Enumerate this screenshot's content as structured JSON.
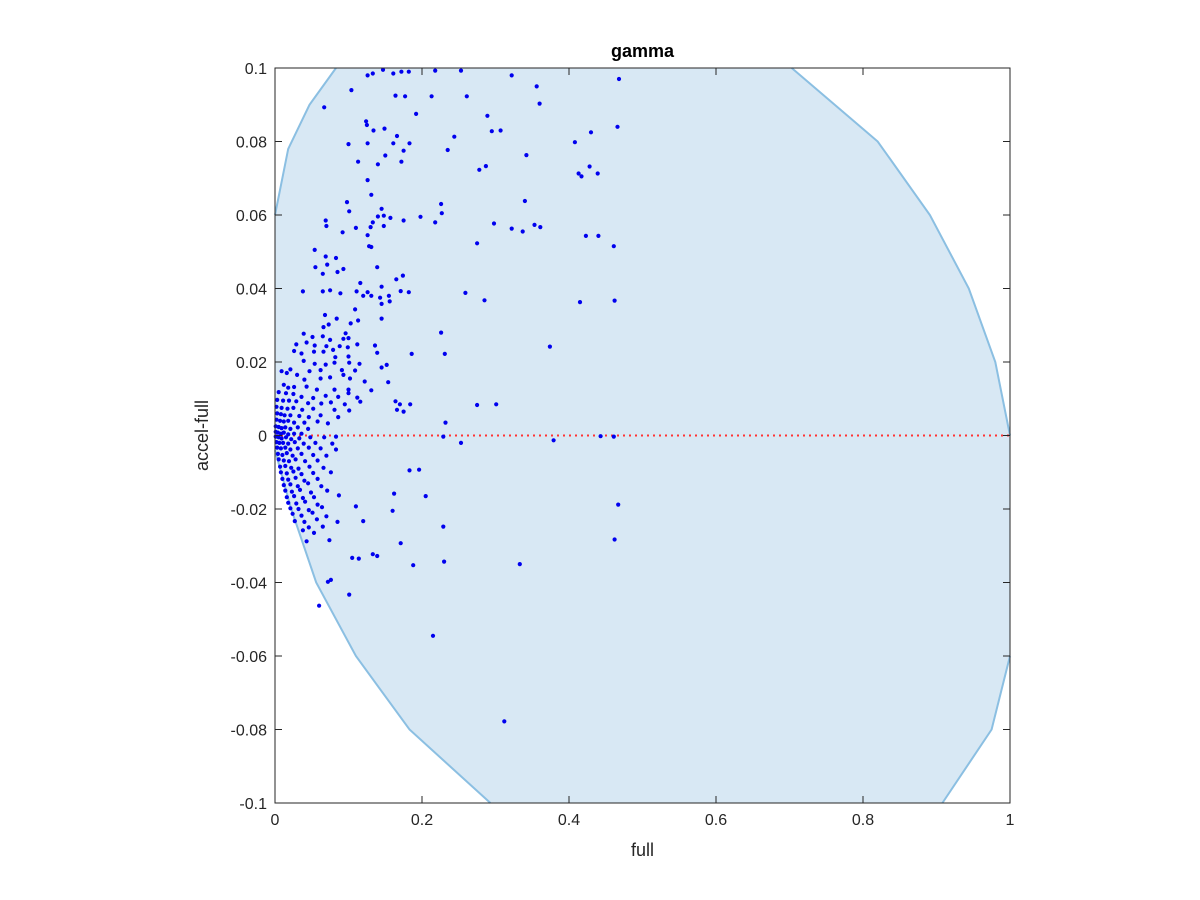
{
  "chart_data": {
    "type": "scatter",
    "title": "gamma",
    "xlabel": "full",
    "ylabel": "accel-full",
    "xlim": [
      0,
      1
    ],
    "ylim": [
      -0.1,
      0.1
    ],
    "xticks": [
      0,
      0.2,
      0.4,
      0.6,
      0.8,
      1
    ],
    "xtick_labels": [
      "0",
      "0.2",
      "0.4",
      "0.6",
      "0.8",
      "1"
    ],
    "yticks": [
      -0.1,
      -0.08,
      -0.06,
      -0.04,
      -0.02,
      0,
      0.02,
      0.04,
      0.06,
      0.08,
      0.1
    ],
    "ytick_labels": [
      "-0.1",
      "-0.08",
      "-0.06",
      "-0.04",
      "-0.02",
      "0",
      "0.02",
      "0.04",
      "0.06",
      "0.08",
      "0.1"
    ],
    "grid": false,
    "colors": {
      "points": "#0000ee",
      "region_fill": "#d8e8f4",
      "region_edge": "#8bbfe2",
      "zero_line": "#ff3333",
      "axes": "#262626"
    },
    "region_boundary": {
      "left": [
        [
          0.0,
          0.06
        ],
        [
          0.018,
          0.078
        ],
        [
          0.047,
          0.09
        ],
        [
          0.083,
          0.1
        ],
        [
          0.0,
          -0.004
        ],
        [
          0.022,
          -0.02
        ],
        [
          0.056,
          -0.04
        ],
        [
          0.11,
          -0.06
        ],
        [
          0.183,
          -0.08
        ],
        [
          0.293,
          -0.1
        ]
      ],
      "right": [
        [
          0.703,
          0.1
        ],
        [
          0.82,
          0.08
        ],
        [
          0.891,
          0.06
        ],
        [
          0.944,
          0.04
        ],
        [
          0.98,
          0.02
        ],
        [
          1.0,
          0.0
        ],
        [
          1.0,
          -0.06
        ],
        [
          0.975,
          -0.08
        ],
        [
          0.908,
          -0.1
        ]
      ]
    },
    "zero_line": {
      "y": 0,
      "style": "dotted"
    },
    "points": [
      [
        0.147,
        0.0995
      ],
      [
        0.161,
        0.0985
      ],
      [
        0.172,
        0.099
      ],
      [
        0.182,
        0.099
      ],
      [
        0.218,
        0.0993
      ],
      [
        0.253,
        0.0993
      ],
      [
        0.322,
        0.098
      ],
      [
        0.468,
        0.097
      ],
      [
        0.126,
        0.098
      ],
      [
        0.133,
        0.0985
      ],
      [
        0.104,
        0.094
      ],
      [
        0.067,
        0.0893
      ],
      [
        0.164,
        0.0925
      ],
      [
        0.177,
        0.0923
      ],
      [
        0.213,
        0.0923
      ],
      [
        0.261,
        0.0923
      ],
      [
        0.356,
        0.095
      ],
      [
        0.36,
        0.0903
      ],
      [
        0.124,
        0.0855
      ],
      [
        0.125,
        0.0845
      ],
      [
        0.134,
        0.083
      ],
      [
        0.192,
        0.0875
      ],
      [
        0.149,
        0.0835
      ],
      [
        0.289,
        0.087
      ],
      [
        0.244,
        0.0813
      ],
      [
        0.295,
        0.0828
      ],
      [
        0.307,
        0.083
      ],
      [
        0.466,
        0.084
      ],
      [
        0.43,
        0.0825
      ],
      [
        0.1,
        0.0793
      ],
      [
        0.126,
        0.0795
      ],
      [
        0.161,
        0.0795
      ],
      [
        0.166,
        0.0815
      ],
      [
        0.175,
        0.0775
      ],
      [
        0.183,
        0.0795
      ],
      [
        0.113,
        0.0745
      ],
      [
        0.15,
        0.0762
      ],
      [
        0.14,
        0.0738
      ],
      [
        0.172,
        0.0745
      ],
      [
        0.235,
        0.0777
      ],
      [
        0.278,
        0.0723
      ],
      [
        0.287,
        0.0733
      ],
      [
        0.342,
        0.0763
      ],
      [
        0.408,
        0.0798
      ],
      [
        0.413,
        0.0713
      ],
      [
        0.417,
        0.0705
      ],
      [
        0.428,
        0.0732
      ],
      [
        0.439,
        0.0713
      ],
      [
        0.126,
        0.0695
      ],
      [
        0.131,
        0.0655
      ],
      [
        0.098,
        0.0635
      ],
      [
        0.101,
        0.061
      ],
      [
        0.145,
        0.0617
      ],
      [
        0.14,
        0.0596
      ],
      [
        0.133,
        0.058
      ],
      [
        0.13,
        0.0567
      ],
      [
        0.148,
        0.0598
      ],
      [
        0.069,
        0.0585
      ],
      [
        0.07,
        0.057
      ],
      [
        0.092,
        0.0553
      ],
      [
        0.11,
        0.0565
      ],
      [
        0.126,
        0.0545
      ],
      [
        0.148,
        0.057
      ],
      [
        0.157,
        0.0592
      ],
      [
        0.175,
        0.0585
      ],
      [
        0.198,
        0.0595
      ],
      [
        0.218,
        0.058
      ],
      [
        0.226,
        0.063
      ],
      [
        0.227,
        0.0605
      ],
      [
        0.298,
        0.0577
      ],
      [
        0.322,
        0.0563
      ],
      [
        0.34,
        0.0638
      ],
      [
        0.337,
        0.0555
      ],
      [
        0.353,
        0.0573
      ],
      [
        0.361,
        0.0567
      ],
      [
        0.275,
        0.0523
      ],
      [
        0.423,
        0.0543
      ],
      [
        0.44,
        0.0543
      ],
      [
        0.461,
        0.0515
      ],
      [
        0.128,
        0.0515
      ],
      [
        0.131,
        0.0513
      ],
      [
        0.054,
        0.0505
      ],
      [
        0.069,
        0.0487
      ],
      [
        0.071,
        0.0465
      ],
      [
        0.083,
        0.0483
      ],
      [
        0.055,
        0.0458
      ],
      [
        0.065,
        0.044
      ],
      [
        0.085,
        0.0445
      ],
      [
        0.093,
        0.0453
      ],
      [
        0.116,
        0.0415
      ],
      [
        0.139,
        0.0458
      ],
      [
        0.165,
        0.0425
      ],
      [
        0.174,
        0.0435
      ],
      [
        0.145,
        0.0405
      ],
      [
        0.12,
        0.038
      ],
      [
        0.038,
        0.0392
      ],
      [
        0.065,
        0.0392
      ],
      [
        0.075,
        0.0395
      ],
      [
        0.089,
        0.0387
      ],
      [
        0.111,
        0.0392
      ],
      [
        0.126,
        0.039
      ],
      [
        0.131,
        0.038
      ],
      [
        0.143,
        0.0375
      ],
      [
        0.145,
        0.0358
      ],
      [
        0.155,
        0.038
      ],
      [
        0.156,
        0.0365
      ],
      [
        0.171,
        0.0393
      ],
      [
        0.182,
        0.039
      ],
      [
        0.259,
        0.0388
      ],
      [
        0.285,
        0.0368
      ],
      [
        0.415,
        0.0363
      ],
      [
        0.462,
        0.0367
      ],
      [
        0.109,
        0.0343
      ],
      [
        0.145,
        0.0318
      ],
      [
        0.068,
        0.0328
      ],
      [
        0.084,
        0.0318
      ],
      [
        0.103,
        0.0305
      ],
      [
        0.113,
        0.0313
      ],
      [
        0.066,
        0.0295
      ],
      [
        0.073,
        0.0302
      ],
      [
        0.039,
        0.0277
      ],
      [
        0.051,
        0.0268
      ],
      [
        0.065,
        0.027
      ],
      [
        0.075,
        0.026
      ],
      [
        0.096,
        0.0278
      ],
      [
        0.093,
        0.0263
      ],
      [
        0.1,
        0.0265
      ],
      [
        0.226,
        0.028
      ],
      [
        0.029,
        0.0248
      ],
      [
        0.043,
        0.0253
      ],
      [
        0.054,
        0.0245
      ],
      [
        0.07,
        0.0243
      ],
      [
        0.066,
        0.0228
      ],
      [
        0.079,
        0.0233
      ],
      [
        0.088,
        0.0243
      ],
      [
        0.099,
        0.024
      ],
      [
        0.112,
        0.0248
      ],
      [
        0.136,
        0.0245
      ],
      [
        0.374,
        0.0242
      ],
      [
        0.026,
        0.023
      ],
      [
        0.036,
        0.0223
      ],
      [
        0.053,
        0.0228
      ],
      [
        0.082,
        0.0213
      ],
      [
        0.1,
        0.0215
      ],
      [
        0.139,
        0.0225
      ],
      [
        0.186,
        0.0222
      ],
      [
        0.231,
        0.0222
      ],
      [
        0.039,
        0.0203
      ],
      [
        0.054,
        0.0195
      ],
      [
        0.069,
        0.0193
      ],
      [
        0.081,
        0.0198
      ],
      [
        0.101,
        0.0198
      ],
      [
        0.115,
        0.0195
      ],
      [
        0.152,
        0.0192
      ],
      [
        0.021,
        0.018
      ],
      [
        0.047,
        0.0175
      ],
      [
        0.062,
        0.0178
      ],
      [
        0.091,
        0.0178
      ],
      [
        0.109,
        0.0177
      ],
      [
        0.145,
        0.0185
      ],
      [
        0.009,
        0.0175
      ],
      [
        0.016,
        0.017
      ],
      [
        0.03,
        0.0165
      ],
      [
        0.04,
        0.0152
      ],
      [
        0.062,
        0.0155
      ],
      [
        0.075,
        0.0158
      ],
      [
        0.093,
        0.0165
      ],
      [
        0.102,
        0.0155
      ],
      [
        0.122,
        0.0147
      ],
      [
        0.154,
        0.0145
      ],
      [
        0.012,
        0.0138
      ],
      [
        0.018,
        0.013
      ],
      [
        0.026,
        0.0132
      ],
      [
        0.043,
        0.0133
      ],
      [
        0.057,
        0.0125
      ],
      [
        0.081,
        0.0125
      ],
      [
        0.1,
        0.0125
      ],
      [
        0.1,
        0.0115
      ],
      [
        0.131,
        0.0123
      ],
      [
        0.005,
        0.0118
      ],
      [
        0.015,
        0.0115
      ],
      [
        0.025,
        0.0113
      ],
      [
        0.036,
        0.0105
      ],
      [
        0.052,
        0.0102
      ],
      [
        0.069,
        0.0108
      ],
      [
        0.086,
        0.0105
      ],
      [
        0.112,
        0.0103
      ],
      [
        0.003,
        0.0097
      ],
      [
        0.011,
        0.0095
      ],
      [
        0.019,
        0.0095
      ],
      [
        0.029,
        0.0093
      ],
      [
        0.045,
        0.0088
      ],
      [
        0.063,
        0.0087
      ],
      [
        0.076,
        0.009
      ],
      [
        0.095,
        0.0085
      ],
      [
        0.116,
        0.0092
      ],
      [
        0.164,
        0.0093
      ],
      [
        0.17,
        0.0085
      ],
      [
        0.184,
        0.0085
      ],
      [
        0.275,
        0.0083
      ],
      [
        0.301,
        0.0085
      ],
      [
        0.002,
        0.0078
      ],
      [
        0.009,
        0.0075
      ],
      [
        0.017,
        0.0073
      ],
      [
        0.025,
        0.0075
      ],
      [
        0.037,
        0.007
      ],
      [
        0.052,
        0.0073
      ],
      [
        0.081,
        0.007
      ],
      [
        0.101,
        0.0068
      ],
      [
        0.166,
        0.007
      ],
      [
        0.175,
        0.0065
      ],
      [
        0.003,
        0.006
      ],
      [
        0.008,
        0.0058
      ],
      [
        0.013,
        0.0055
      ],
      [
        0.021,
        0.0055
      ],
      [
        0.033,
        0.0053
      ],
      [
        0.046,
        0.005
      ],
      [
        0.062,
        0.0055
      ],
      [
        0.086,
        0.005
      ],
      [
        0.002,
        0.0043
      ],
      [
        0.007,
        0.004
      ],
      [
        0.012,
        0.0038
      ],
      [
        0.018,
        0.004
      ],
      [
        0.026,
        0.0035
      ],
      [
        0.04,
        0.0035
      ],
      [
        0.058,
        0.0038
      ],
      [
        0.072,
        0.0033
      ],
      [
        0.232,
        0.0035
      ],
      [
        0.001,
        0.0025
      ],
      [
        0.005,
        0.0023
      ],
      [
        0.009,
        0.002
      ],
      [
        0.014,
        0.0022
      ],
      [
        0.021,
        0.0018
      ],
      [
        0.031,
        0.0022
      ],
      [
        0.045,
        0.0018
      ],
      [
        0.001,
        0.001
      ],
      [
        0.004,
        0.0008
      ],
      [
        0.008,
        0.0005
      ],
      [
        0.012,
        0.0008
      ],
      [
        0.018,
        0.0003
      ],
      [
        0.026,
        0.0005
      ],
      [
        0.036,
        0.0005
      ],
      [
        0.001,
        -0.0003
      ],
      [
        0.005,
        -0.0005
      ],
      [
        0.009,
        -0.0008
      ],
      [
        0.015,
        -0.0005
      ],
      [
        0.022,
        -0.001
      ],
      [
        0.033,
        -0.0008
      ],
      [
        0.048,
        -0.0005
      ],
      [
        0.067,
        -0.0005
      ],
      [
        0.083,
        -0.0003
      ],
      [
        0.229,
        -0.0003
      ],
      [
        0.443,
        -0.0002
      ],
      [
        0.461,
        -0.0003
      ],
      [
        0.002,
        -0.0018
      ],
      [
        0.006,
        -0.002
      ],
      [
        0.011,
        -0.002
      ],
      [
        0.018,
        -0.0022
      ],
      [
        0.027,
        -0.0018
      ],
      [
        0.039,
        -0.0022
      ],
      [
        0.055,
        -0.002
      ],
      [
        0.078,
        -0.0022
      ],
      [
        0.379,
        -0.0013
      ],
      [
        0.253,
        -0.002
      ],
      [
        0.003,
        -0.0033
      ],
      [
        0.008,
        -0.0035
      ],
      [
        0.014,
        -0.0033
      ],
      [
        0.021,
        -0.0038
      ],
      [
        0.031,
        -0.0035
      ],
      [
        0.046,
        -0.0033
      ],
      [
        0.062,
        -0.0035
      ],
      [
        0.083,
        -0.0038
      ],
      [
        0.004,
        -0.005
      ],
      [
        0.01,
        -0.0053
      ],
      [
        0.016,
        -0.0048
      ],
      [
        0.024,
        -0.0055
      ],
      [
        0.036,
        -0.005
      ],
      [
        0.052,
        -0.0053
      ],
      [
        0.07,
        -0.0055
      ],
      [
        0.005,
        -0.0065
      ],
      [
        0.012,
        -0.0068
      ],
      [
        0.019,
        -0.007
      ],
      [
        0.028,
        -0.0065
      ],
      [
        0.041,
        -0.007
      ],
      [
        0.058,
        -0.0068
      ],
      [
        0.007,
        -0.0085
      ],
      [
        0.014,
        -0.0083
      ],
      [
        0.022,
        -0.0088
      ],
      [
        0.032,
        -0.009
      ],
      [
        0.047,
        -0.0085
      ],
      [
        0.066,
        -0.0088
      ],
      [
        0.008,
        -0.01
      ],
      [
        0.016,
        -0.0103
      ],
      [
        0.025,
        -0.0098
      ],
      [
        0.036,
        -0.0105
      ],
      [
        0.052,
        -0.0102
      ],
      [
        0.076,
        -0.01
      ],
      [
        0.183,
        -0.0095
      ],
      [
        0.196,
        -0.0093
      ],
      [
        0.01,
        -0.0118
      ],
      [
        0.018,
        -0.012
      ],
      [
        0.028,
        -0.0115
      ],
      [
        0.04,
        -0.0123
      ],
      [
        0.058,
        -0.0118
      ],
      [
        0.012,
        -0.0135
      ],
      [
        0.021,
        -0.0133
      ],
      [
        0.031,
        -0.0138
      ],
      [
        0.045,
        -0.013
      ],
      [
        0.063,
        -0.0138
      ],
      [
        0.014,
        -0.015
      ],
      [
        0.023,
        -0.0153
      ],
      [
        0.034,
        -0.0148
      ],
      [
        0.049,
        -0.0155
      ],
      [
        0.071,
        -0.015
      ],
      [
        0.016,
        -0.0168
      ],
      [
        0.026,
        -0.0165
      ],
      [
        0.038,
        -0.017
      ],
      [
        0.053,
        -0.0168
      ],
      [
        0.087,
        -0.0163
      ],
      [
        0.162,
        -0.0158
      ],
      [
        0.018,
        -0.0183
      ],
      [
        0.029,
        -0.0185
      ],
      [
        0.041,
        -0.018
      ],
      [
        0.058,
        -0.0188
      ],
      [
        0.021,
        -0.0198
      ],
      [
        0.032,
        -0.02
      ],
      [
        0.046,
        -0.0203
      ],
      [
        0.064,
        -0.0195
      ],
      [
        0.11,
        -0.0193
      ],
      [
        0.16,
        -0.0205
      ],
      [
        0.024,
        -0.0213
      ],
      [
        0.036,
        -0.0218
      ],
      [
        0.051,
        -0.021
      ],
      [
        0.07,
        -0.022
      ],
      [
        0.027,
        -0.0233
      ],
      [
        0.04,
        -0.0235
      ],
      [
        0.057,
        -0.0228
      ],
      [
        0.085,
        -0.0235
      ],
      [
        0.12,
        -0.0233
      ],
      [
        0.046,
        -0.025
      ],
      [
        0.065,
        -0.0248
      ],
      [
        0.038,
        -0.0258
      ],
      [
        0.053,
        -0.0265
      ],
      [
        0.229,
        -0.0248
      ],
      [
        0.205,
        -0.0165
      ],
      [
        0.467,
        -0.0188
      ],
      [
        0.043,
        -0.0288
      ],
      [
        0.074,
        -0.0285
      ],
      [
        0.171,
        -0.0293
      ],
      [
        0.462,
        -0.0283
      ],
      [
        0.105,
        -0.0333
      ],
      [
        0.114,
        -0.0335
      ],
      [
        0.133,
        -0.0323
      ],
      [
        0.139,
        -0.0328
      ],
      [
        0.188,
        -0.0353
      ],
      [
        0.23,
        -0.0343
      ],
      [
        0.333,
        -0.035
      ],
      [
        0.076,
        -0.0393
      ],
      [
        0.072,
        -0.0398
      ],
      [
        0.101,
        -0.0433
      ],
      [
        0.06,
        -0.0463
      ],
      [
        0.215,
        -0.0545
      ],
      [
        0.312,
        -0.0778
      ]
    ]
  }
}
